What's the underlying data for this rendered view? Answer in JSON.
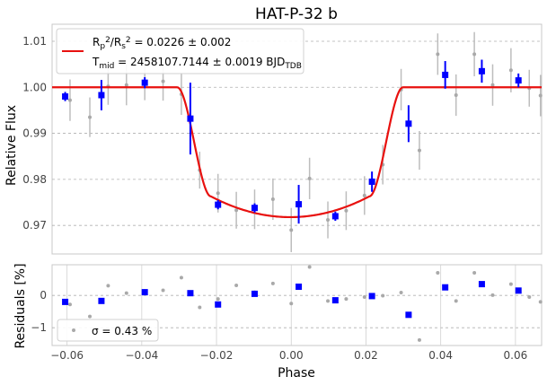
{
  "chart_data": [
    {
      "type": "scatter",
      "panel": "main",
      "title": "HAT-P-32 b",
      "xlabel": "",
      "ylabel": "Relative Flux",
      "xlim": [
        -0.064,
        0.067
      ],
      "ylim": [
        0.9638,
        1.0137
      ],
      "yticks": [
        0.97,
        0.98,
        0.99,
        1.0,
        1.01
      ],
      "ytick_labels": [
        "0.97",
        "0.98",
        "0.99",
        "1.00",
        "1.01"
      ],
      "grid": "horizontal-dashed",
      "legend_placement": "top-left",
      "legend": {
        "fit_label_html": "R<tspan baseline-shift=\"-30%\" font-size=\"9\">p</tspan><tspan baseline-shift=\"45%\" font-size=\"9\">2</tspan>/R<tspan baseline-shift=\"-30%\" font-size=\"9\">s</tspan><tspan baseline-shift=\"45%\" font-size=\"9\">2</tspan> = 0.0226 ± 0.002",
        "fit_label": "Rp²/Rs² = 0.0226 ± 0.002",
        "tmid_label": "Tmid = 2458107.7144 ± 0.0019 BJD_TDB",
        "fit_color": "#e8110f"
      },
      "unbinned": {
        "color": "#a9a9a9",
        "x": [
          -0.0592,
          -0.0539,
          -0.049,
          -0.0441,
          -0.0392,
          -0.0343,
          -0.0294,
          -0.0245,
          -0.0196,
          -0.0147,
          -0.0098,
          -0.0049,
          0.0,
          0.0049,
          0.0098,
          0.0147,
          0.0196,
          0.0245,
          0.0294,
          0.0343,
          0.0392,
          0.0441,
          0.049,
          0.0539,
          0.0588,
          0.0637,
          0.0667
        ],
        "y": [
          0.9972,
          0.9935,
          1.0002,
          1.0005,
          1.0012,
          1.0013,
          0.9985,
          0.982,
          0.977,
          0.9733,
          0.9735,
          0.9757,
          0.969,
          0.9802,
          0.9712,
          0.9732,
          0.9765,
          0.9832,
          0.9995,
          0.9863,
          1.0072,
          0.9983,
          1.0072,
          1.0005,
          1.0037,
          0.9998,
          0.9982
        ],
        "err": [
          0.0045,
          0.0043,
          0.004,
          0.0044,
          0.004,
          0.0042,
          0.0045,
          0.004,
          0.0042,
          0.004,
          0.0043,
          0.0045,
          0.0048,
          0.0045,
          0.004,
          0.0042,
          0.0042,
          0.0043,
          0.0045,
          0.0042,
          0.0045,
          0.0045,
          0.0048,
          0.0045,
          0.0048,
          0.004,
          0.0045
        ]
      },
      "binned": {
        "color": "#0000ff",
        "x": [
          -0.0605,
          -0.0508,
          -0.0392,
          -0.027,
          -0.0196,
          -0.0098,
          0.002,
          0.0118,
          0.0216,
          0.0314,
          0.0412,
          0.051,
          0.0608
        ],
        "y": [
          0.998,
          0.9983,
          1.001,
          0.9932,
          0.9745,
          0.9738,
          0.9746,
          0.972,
          0.9795,
          0.9921,
          1.0027,
          1.0035,
          1.0015
        ],
        "err": [
          0.001,
          0.0033,
          0.0012,
          0.0078,
          0.001,
          0.001,
          0.0042,
          0.001,
          0.0022,
          0.004,
          0.003,
          0.0025,
          0.0015
        ]
      },
      "model": {
        "name": "",
        "depth": 0.0282,
        "t_center": -0.0003,
        "t_ingress_start": -0.0305,
        "t_full": -0.0215,
        "color": "#e8110f"
      }
    },
    {
      "type": "scatter",
      "panel": "residuals",
      "xlabel": "Phase",
      "ylabel": "Residuals [%]",
      "xlim": [
        -0.064,
        0.067
      ],
      "ylim": [
        -1.55,
        0.95
      ],
      "yticks": [
        -1,
        0
      ],
      "ytick_labels": [
        "−1",
        "0"
      ],
      "xticks": [
        -0.06,
        -0.04,
        -0.02,
        0.0,
        0.02,
        0.04,
        0.06
      ],
      "xtick_labels": [
        "−0.06",
        "−0.04",
        "−0.02",
        "0.00",
        "0.02",
        "0.04",
        "0.06"
      ],
      "grid": "both",
      "legend_placement": "bottom-left",
      "legend": {
        "sigma_label": "σ = 0.43 %"
      },
      "unbinned": {
        "color": "#a9a9a9",
        "x": [
          -0.0592,
          -0.0539,
          -0.049,
          -0.0441,
          -0.0392,
          -0.0343,
          -0.0294,
          -0.0245,
          -0.0196,
          -0.0147,
          -0.0098,
          -0.0049,
          0.0,
          0.0049,
          0.0098,
          0.0147,
          0.0196,
          0.0245,
          0.0294,
          0.0343,
          0.0392,
          0.0441,
          0.049,
          0.0539,
          0.0588,
          0.0637,
          0.0667
        ],
        "y": [
          -0.28,
          -0.65,
          0.3,
          0.07,
          0.14,
          0.16,
          0.55,
          -0.37,
          -0.11,
          0.31,
          0.1,
          0.37,
          -0.25,
          0.88,
          -0.17,
          -0.11,
          -0.05,
          -0.01,
          0.09,
          -1.38,
          0.7,
          -0.17,
          0.7,
          0.01,
          0.35,
          -0.05,
          -0.2
        ],
        "err": [
          0.45,
          0.43,
          0.4,
          0.44,
          0.4,
          0.42,
          0.45,
          0.4,
          0.42,
          0.4,
          0.43,
          0.45,
          0.48,
          0.45,
          0.4,
          0.42,
          0.42,
          0.43,
          0.45,
          0.42,
          0.45,
          0.45,
          0.48,
          0.45,
          0.48,
          0.4,
          0.45
        ]
      },
      "binned": {
        "color": "#0000ff",
        "x": [
          -0.0605,
          -0.0508,
          -0.0392,
          -0.027,
          -0.0196,
          -0.0098,
          0.002,
          0.0118,
          0.0216,
          0.0314,
          0.0412,
          0.051,
          0.0608
        ],
        "y": [
          -0.2,
          -0.17,
          0.1,
          0.07,
          -0.28,
          0.05,
          0.27,
          -0.15,
          -0.02,
          -0.6,
          0.25,
          0.35,
          0.15
        ]
      }
    }
  ]
}
